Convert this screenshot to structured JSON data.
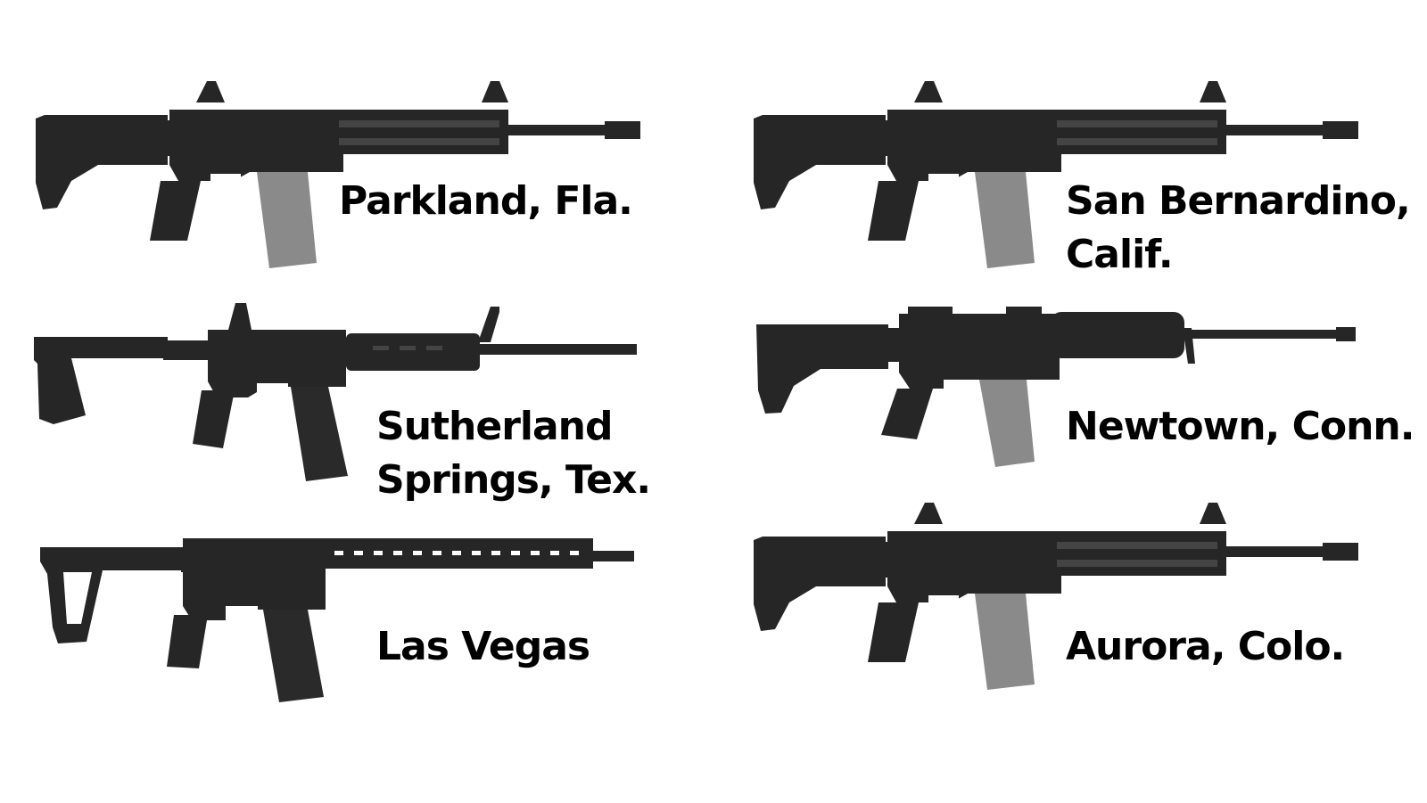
{
  "image": {
    "colors": {
      "background": "#ffffff",
      "text": "#000000",
      "rifle_dark": "#262626",
      "rifle_mid": "#3a3a3a",
      "magazine_gray": "#8a8a8a",
      "magazine_dark": "#2a2a2a"
    }
  },
  "panels": [
    {
      "label_lines": [
        "Parkland, Fla."
      ],
      "magazine": "gray",
      "stock": "collapsible",
      "handguard": "quad-rail"
    },
    {
      "label_lines": [
        "San Bernardino,",
        "Calif."
      ],
      "magazine": "gray",
      "stock": "collapsible",
      "handguard": "quad-rail"
    },
    {
      "label_lines": [
        "Sutherland",
        "Springs, Tex."
      ],
      "magazine": "dark",
      "stock": "fixed-angular",
      "handguard": "polymer"
    },
    {
      "label_lines": [
        "Newtown, Conn."
      ],
      "magazine": "gray",
      "stock": "collapsible",
      "handguard": "round"
    },
    {
      "label_lines": [
        "Las Vegas"
      ],
      "magazine": "dark",
      "stock": "skeleton",
      "handguard": "free-float"
    },
    {
      "label_lines": [
        "Aurora, Colo."
      ],
      "magazine": "gray",
      "stock": "collapsible",
      "handguard": "quad-rail"
    }
  ]
}
